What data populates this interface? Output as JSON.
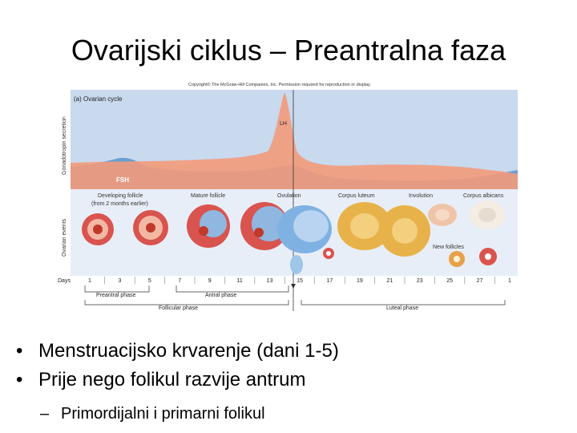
{
  "slide": {
    "title": "Ovarijski ciklus – Preantralna faza"
  },
  "figure": {
    "copyright": "Copyright© The McGraw-Hill Companies, Inc. Permission required for reproduction or display.",
    "panel_title": "(a) Ovarian cycle",
    "y_label_top": "Gonadotropin secretion",
    "y_label_bottom": "Ovarian events",
    "hormones": {
      "lh": "LH",
      "fsh": "FSH"
    },
    "events": {
      "developing": "Developing follicle",
      "developing_note": "(from 2 months earlier)",
      "mature": "Mature follicle",
      "ovulation": "Ovulation",
      "corpus_luteum": "Corpus luteum",
      "involution": "Involution",
      "corpus_albicans": "Corpus albicans",
      "new_follicles": "New follicles"
    },
    "days_label": "Days",
    "days": [
      "1",
      "3",
      "5",
      "7",
      "9",
      "11",
      "13",
      "15",
      "17",
      "19",
      "21",
      "23",
      "25",
      "27",
      "1"
    ],
    "phases": {
      "preantral": "Preantral phase",
      "antral": "Antral phase",
      "follicular": "Follicular phase",
      "luteal": "Luteal phase"
    },
    "colors": {
      "background_blue": "#c9d9ee",
      "lh_fill": "#f39a7a",
      "fsh_fill": "#6a9fd0",
      "follicle": "#d9534f",
      "corpus_luteum": "#e8b24a"
    }
  },
  "bullets": [
    {
      "text": "Menstruacijsko krvarenje (dani 1-5)"
    },
    {
      "text": "Prije nego folikul razvije antrum"
    }
  ],
  "sub_bullets": [
    {
      "text": "Primordijalni i primarni folikul"
    }
  ]
}
